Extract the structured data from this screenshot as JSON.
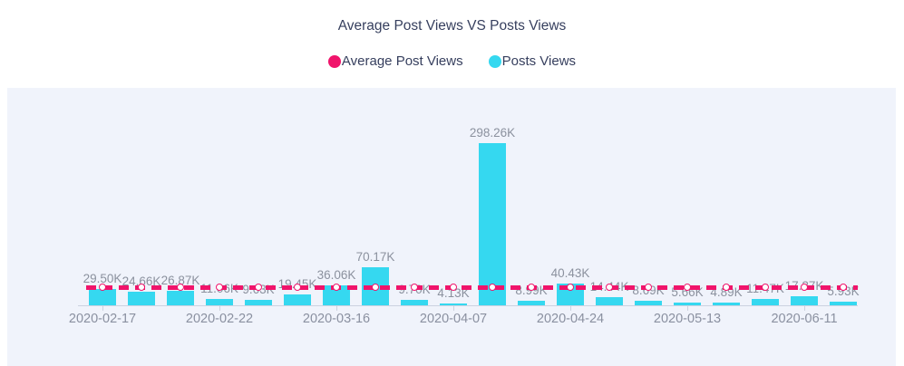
{
  "page": {
    "title": "Average Post Views VS Posts Views"
  },
  "legend": {
    "items": [
      {
        "id": "average-post-views",
        "label": "Average Post Views",
        "color": "#f0146b"
      },
      {
        "id": "posts-views",
        "label": "Posts Views",
        "color": "#35d8f0"
      }
    ]
  },
  "chart_data": {
    "type": "bar",
    "title": "Average Post Views VS Posts Views",
    "xlabel": "",
    "ylabel": "",
    "ylim_k": [
      0,
      400
    ],
    "grid": false,
    "legend_position": "top-center",
    "plot_background": "#f0f3fb",
    "series": [
      {
        "name": "Posts Views",
        "type": "bar",
        "color": "#35d8f0",
        "values_k": [
          29.5,
          24.66,
          26.87,
          11.06,
          9.63,
          19.45,
          36.06,
          70.17,
          9.7,
          4.13,
          298.26,
          8.99,
          40.43,
          14.44,
          8.69,
          5.66,
          4.89,
          11.47,
          17.27,
          5.93
        ],
        "data_labels": [
          "29.50K",
          "24.66K",
          "26.87K",
          "11.06K",
          "9.63K",
          "19.45K",
          "36.06K",
          "70.17K",
          "9.70K",
          "4.13K",
          "298.26K",
          "8.99K",
          "40.43K",
          "14.44K",
          "8.69K",
          "5.66K",
          "4.89K",
          "11.47K",
          "17.27K",
          "5.93K"
        ]
      },
      {
        "name": "Average Post Views",
        "type": "dashed-line-with-markers",
        "color": "#f0146b",
        "marker": "circle-white-fill",
        "constant_value_k_estimated": 32.9
      }
    ],
    "x_tick_labels": [
      {
        "bar_index": 0,
        "label": "2020-02-17"
      },
      {
        "bar_index": 3,
        "label": "2020-02-22"
      },
      {
        "bar_index": 6,
        "label": "2020-03-16"
      },
      {
        "bar_index": 9,
        "label": "2020-04-07"
      },
      {
        "bar_index": 12,
        "label": "2020-04-24"
      },
      {
        "bar_index": 15,
        "label": "2020-05-13"
      },
      {
        "bar_index": 18,
        "label": "2020-06-11"
      }
    ]
  }
}
